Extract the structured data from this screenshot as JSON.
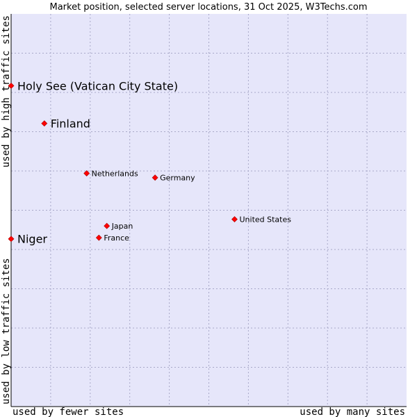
{
  "chart_data": {
    "type": "scatter",
    "title": "Market position, selected server locations, 31 Oct 2025, W3Techs.com",
    "xlabel_low": "used by fewer sites",
    "xlabel_high": "used by many sites",
    "ylabel_low": "used by low traffic sites",
    "ylabel_high": "used by high traffic sites",
    "xlim": [
      0,
      100
    ],
    "ylim": [
      0,
      100
    ],
    "grid": true,
    "colors": {
      "plot_bg": "#e6e6fa",
      "grid": "#a8a8c8",
      "axis": "#000000",
      "point": "#ff0000",
      "point_edge": "#aa0000"
    },
    "points": [
      {
        "name": "Holy See (Vatican City State)",
        "x": 0.0,
        "y": 81.7,
        "size": "large"
      },
      {
        "name": "Finland",
        "x": 8.4,
        "y": 72.1,
        "size": "large"
      },
      {
        "name": "Netherlands",
        "x": 19.1,
        "y": 59.4,
        "size": "small"
      },
      {
        "name": "Germany",
        "x": 36.4,
        "y": 58.3,
        "size": "small"
      },
      {
        "name": "United States",
        "x": 56.5,
        "y": 47.7,
        "size": "small"
      },
      {
        "name": "Japan",
        "x": 24.2,
        "y": 46.0,
        "size": "small"
      },
      {
        "name": "France",
        "x": 22.2,
        "y": 43.0,
        "size": "small"
      },
      {
        "name": "Niger",
        "x": 0.0,
        "y": 42.7,
        "size": "large"
      }
    ]
  }
}
